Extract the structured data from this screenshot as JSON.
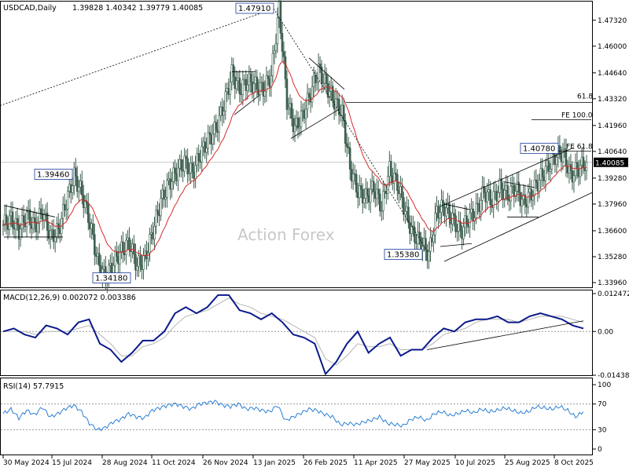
{
  "header": {
    "symbol_label": "USDCAD,Daily",
    "ohlc": "1.39828 1.40342 1.39779 1.40085",
    "macd_label": "MACD(12,26,9) 0.002072 0.003386",
    "rsi_label": "RSI(14) 57.7915"
  },
  "watermark": "Action Forex",
  "colors": {
    "candle": "#3d5f4f",
    "ma": "#d42a2a",
    "macd_line": "#0a1a8c",
    "signal_line": "#b5b5b5",
    "rsi_line": "#2b7fd6",
    "trend": "#000000",
    "last_price_bg": "#000000"
  },
  "chart_data": [
    {
      "type": "line",
      "name": "price",
      "title": "USDCAD,Daily",
      "y_ticks": [
        "1.47320",
        "1.46000",
        "1.44640",
        "1.43320",
        "1.41960",
        "1.40640",
        "1.39280",
        "1.37960",
        "1.36600",
        "1.35280",
        "1.33960"
      ],
      "ylim": [
        1.3372,
        1.4827
      ],
      "x_tick_labels": [
        "30 May 2024",
        "15 Jul 2024",
        "28 Aug 2024",
        "11 Oct 2024",
        "26 Nov 2024",
        "13 Jan 2025",
        "26 Feb 2025",
        "11 Apr 2025",
        "27 May 2025",
        "10 Jul 2025",
        "25 Aug 2025",
        "8 Oct 2025"
      ],
      "last_price": "1.40085",
      "price_labels": [
        "1.47910",
        "1.39460",
        "1.34180",
        "1.35380",
        "1.40780"
      ],
      "level_labels": [
        "61.8",
        "FE 100.0",
        "FE 61.8"
      ],
      "series": [
        {
          "name": "USDCAD",
          "x": [
            0,
            10,
            20,
            30,
            40,
            50,
            60,
            70,
            80,
            90,
            100,
            110,
            120,
            130,
            140,
            150,
            160,
            170,
            180,
            190,
            200,
            210,
            220,
            230,
            240,
            250,
            260,
            270,
            280,
            290,
            300,
            310,
            320,
            330,
            340,
            350,
            360,
            370,
            380,
            390,
            400,
            410,
            420,
            430,
            440,
            450,
            460,
            470,
            480,
            490,
            500,
            510,
            520,
            530,
            540,
            550,
            560,
            570,
            580,
            590,
            600,
            610,
            620,
            630,
            640,
            650,
            660,
            670,
            680,
            690,
            700,
            710,
            720,
            730,
            740
          ],
          "values": [
            1.369,
            1.372,
            1.366,
            1.374,
            1.368,
            1.376,
            1.363,
            1.366,
            1.381,
            1.394,
            1.385,
            1.37,
            1.35,
            1.342,
            1.35,
            1.356,
            1.36,
            1.348,
            1.352,
            1.366,
            1.381,
            1.39,
            1.396,
            1.401,
            1.395,
            1.405,
            1.412,
            1.418,
            1.43,
            1.446,
            1.438,
            1.442,
            1.44,
            1.438,
            1.445,
            1.479,
            1.432,
            1.418,
            1.425,
            1.436,
            1.448,
            1.44,
            1.432,
            1.426,
            1.398,
            1.386,
            1.383,
            1.388,
            1.378,
            1.397,
            1.39,
            1.376,
            1.364,
            1.36,
            1.354,
            1.376,
            1.378,
            1.372,
            1.365,
            1.372,
            1.376,
            1.386,
            1.381,
            1.388,
            1.384,
            1.388,
            1.38,
            1.385,
            1.392,
            1.398,
            1.404,
            1.406,
            1.394,
            1.398,
            1.401
          ]
        }
      ]
    },
    {
      "type": "line",
      "name": "macd",
      "title": "MACD(12,26,9) 0.002072 0.003386",
      "y_ticks": [
        "0.012472",
        "0.00",
        "-0.014389"
      ],
      "series": [
        {
          "name": "MACD",
          "values": [
            0.0,
            0.001,
            -0.001,
            -0.002,
            0.002,
            0.001,
            -0.001,
            0.003,
            0.004,
            -0.004,
            -0.006,
            -0.01,
            -0.007,
            -0.003,
            -0.003,
            0.0,
            0.006,
            0.008,
            0.006,
            0.008,
            0.012,
            0.012,
            0.007,
            0.006,
            0.004,
            0.006,
            0.003,
            -0.001,
            -0.002,
            -0.004,
            -0.014,
            -0.01,
            -0.004,
            0.0,
            -0.007,
            -0.004,
            -0.002,
            -0.008,
            -0.006,
            -0.006,
            -0.002,
            0.001,
            0.0,
            0.003,
            0.004,
            0.004,
            0.005,
            0.003,
            0.003,
            0.005,
            0.006,
            0.005,
            0.004,
            0.002,
            0.001
          ]
        },
        {
          "name": "Signal",
          "values": [
            0.0,
            0.0,
            0.0,
            -0.001,
            0.0,
            0.0,
            0.0,
            0.001,
            0.002,
            -0.001,
            -0.004,
            -0.008,
            -0.008,
            -0.005,
            -0.004,
            -0.002,
            0.002,
            0.005,
            0.006,
            0.007,
            0.009,
            0.011,
            0.009,
            0.008,
            0.006,
            0.005,
            0.004,
            0.002,
            0.0,
            -0.002,
            -0.009,
            -0.011,
            -0.008,
            -0.004,
            -0.005,
            -0.005,
            -0.004,
            -0.006,
            -0.006,
            -0.006,
            -0.004,
            -0.001,
            0.0,
            0.001,
            0.003,
            0.004,
            0.004,
            0.004,
            0.003,
            0.004,
            0.005,
            0.005,
            0.005,
            0.004,
            0.003
          ]
        }
      ]
    },
    {
      "type": "line",
      "name": "rsi",
      "title": "RSI(14) 57.7915",
      "y_ticks": [
        "100",
        "70",
        "30",
        "0"
      ],
      "ylim": [
        0,
        100
      ],
      "series": [
        {
          "name": "RSI(14)",
          "values": [
            55,
            62,
            48,
            60,
            53,
            65,
            50,
            55,
            63,
            68,
            58,
            40,
            30,
            33,
            42,
            46,
            55,
            50,
            48,
            60,
            64,
            68,
            70,
            66,
            62,
            70,
            72,
            74,
            68,
            66,
            70,
            62,
            64,
            60,
            58,
            68,
            44,
            50,
            56,
            62,
            60,
            54,
            50,
            38,
            40,
            38,
            42,
            45,
            50,
            40,
            38,
            36,
            46,
            50,
            44,
            55,
            58,
            52,
            55,
            60,
            56,
            62,
            58,
            60,
            64,
            60,
            56,
            58,
            66,
            64,
            62,
            66,
            60,
            50,
            57.8
          ]
        }
      ]
    }
  ]
}
